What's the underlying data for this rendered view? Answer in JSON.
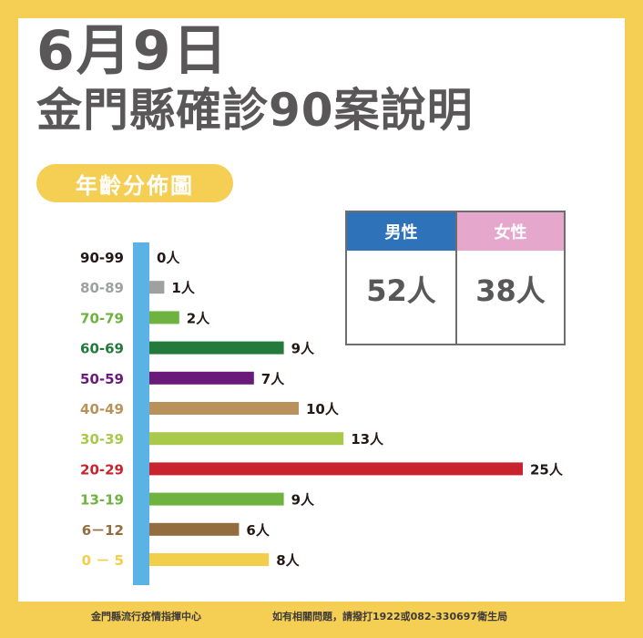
{
  "header": {
    "date": "6月9日",
    "headline": "金門縣確診90案說明",
    "badge": "年齡分佈圖"
  },
  "gender": {
    "male_label": "男性",
    "male_value": "52人",
    "female_label": "女性",
    "female_value": "38人",
    "male_color": "#2E73B9",
    "female_color": "#E5A8CC"
  },
  "footer": {
    "left": "金門縣流行疫情指揮中心",
    "right": "如有相關問題，請撥打1922或082-330697衛生局"
  },
  "chart_data": {
    "type": "bar",
    "orientation": "horizontal",
    "categories": [
      "90-99",
      "80-89",
      "70-79",
      "60-69",
      "50-59",
      "40-49",
      "30-39",
      "20-29",
      "13-19",
      "6－12",
      "0 － 5"
    ],
    "values": [
      0,
      1,
      2,
      9,
      7,
      10,
      13,
      25,
      9,
      6,
      8
    ],
    "value_labels": [
      "0人",
      "1人",
      "2人",
      "9人",
      "7人",
      "10人",
      "13人",
      "25人",
      "9人",
      "6人",
      "8人"
    ],
    "colors": [
      "#231815",
      "#9FA0A0",
      "#6EB23F",
      "#237A3A",
      "#6A1B7A",
      "#B8925A",
      "#A9C94B",
      "#C9232D",
      "#6EB23F",
      "#936C3F",
      "#F2CE4B"
    ],
    "axis_color": "#5BB3E5",
    "title": "年齡分佈圖"
  }
}
